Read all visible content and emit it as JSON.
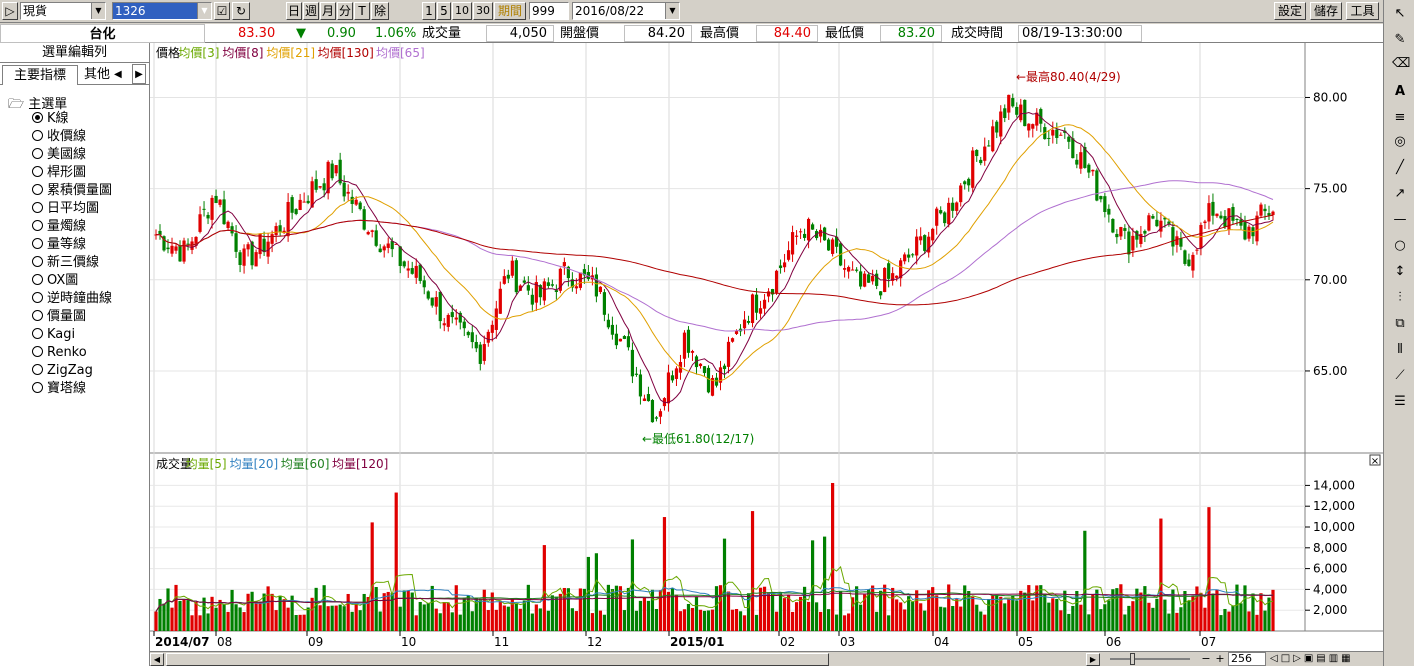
{
  "toolbar": {
    "market": "現貨",
    "symbol": "1326",
    "periods": [
      "日",
      "週",
      "月",
      "分",
      "T",
      "除"
    ],
    "intervals": [
      "1",
      "5",
      "10",
      "30"
    ],
    "period_label": "期間",
    "count": "999",
    "date": "2016/08/22",
    "settings": "設定",
    "save": "儲存",
    "tools": "工具"
  },
  "quote": {
    "name": "台化",
    "price": "83.30",
    "change": "0.90",
    "change_pct": "1.06%",
    "volume_label": "成交量",
    "volume": "4,050",
    "open_label": "開盤價",
    "open": "84.20",
    "high_label": "最高價",
    "high": "84.40",
    "low_label": "最低價",
    "low": "83.20",
    "time_label": "成交時間",
    "time": "08/19-13:30:00",
    "colors": {
      "up": "#e00000",
      "down": "#008000"
    }
  },
  "sidebar": {
    "title": "選單編輯列",
    "tabs": [
      "主要指標",
      "其他"
    ],
    "root": "主選單",
    "items": [
      {
        "label": "K線",
        "selected": true
      },
      {
        "label": "收價線",
        "selected": false
      },
      {
        "label": "美國線",
        "selected": false
      },
      {
        "label": "桿形圖",
        "selected": false
      },
      {
        "label": "累積價量圖",
        "selected": false
      },
      {
        "label": "日平均圖",
        "selected": false
      },
      {
        "label": "量燭線",
        "selected": false
      },
      {
        "label": "量等線",
        "selected": false
      },
      {
        "label": "新三價線",
        "selected": false
      },
      {
        "label": "OX圖",
        "selected": false
      },
      {
        "label": "逆時鐘曲線",
        "selected": false
      },
      {
        "label": "價量圖",
        "selected": false
      },
      {
        "label": "Kagi",
        "selected": false
      },
      {
        "label": "Renko",
        "selected": false
      },
      {
        "label": "ZigZag",
        "selected": false
      },
      {
        "label": "寶塔線",
        "selected": false
      }
    ]
  },
  "price_chart": {
    "legend": [
      {
        "label": "價格",
        "color": "#000000"
      },
      {
        "label": "均價[3]",
        "color": "#6aa800"
      },
      {
        "label": "均價[8]",
        "color": "#800040"
      },
      {
        "label": "均價[21]",
        "color": "#e0a000"
      },
      {
        "label": "均價[130]",
        "color": "#b00000"
      },
      {
        "label": "均價[65]",
        "color": "#b070d0"
      }
    ],
    "y_ticks": [
      "80.00",
      "75.00",
      "70.00",
      "65.00"
    ],
    "high_note": "←最高80.40(4/29)",
    "low_note": "←最低61.80(12/17)"
  },
  "volume_chart": {
    "legend": [
      {
        "label": "成交量",
        "color": "#000000"
      },
      {
        "label": "均量[5]",
        "color": "#6aa800"
      },
      {
        "label": "均量[20]",
        "color": "#3080c0"
      },
      {
        "label": "均量[60]",
        "color": "#208020"
      },
      {
        "label": "均量[120]",
        "color": "#800040"
      }
    ],
    "y_ticks": [
      "14,000",
      "12,000",
      "10,000",
      "8,000",
      "6,000",
      "4,000",
      "2,000"
    ]
  },
  "x_axis": [
    "2014/07",
    "08",
    "09",
    "10",
    "11",
    "12",
    "2015/01",
    "02",
    "03",
    "04",
    "05",
    "06",
    "07"
  ],
  "chart_data": {
    "type": "candlestick",
    "series_close_approx": [
      72.5,
      71.5,
      74.8,
      71.0,
      72.5,
      74.5,
      76.0,
      73.5,
      71.5,
      70.0,
      67.5,
      66.0,
      70.5,
      69.0,
      70.5,
      69.5,
      66.0,
      62.5,
      67.0,
      64.0,
      68.0,
      70.0,
      73.0,
      71.5,
      69.5,
      70.0,
      72.0,
      74.0,
      77.0,
      79.5,
      78.5,
      78.0,
      75.0,
      72.0,
      73.5,
      71.0,
      74.0,
      72.5,
      74.0
    ],
    "ylim": [
      60.5,
      82.0
    ],
    "volume_ylim": [
      0,
      15000
    ]
  },
  "zoom": "256"
}
